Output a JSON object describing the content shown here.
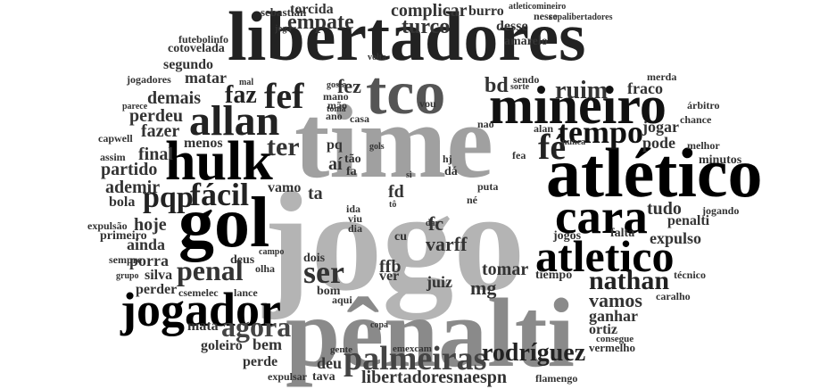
{
  "words": [
    {
      "text": "jogo",
      "color": "#b4b4b4"
    },
    {
      "text": "time",
      "color": "#a0a0a0"
    },
    {
      "text": "pênalti",
      "color": "#8a8a8a"
    },
    {
      "text": "libertadores",
      "color": "#222222"
    },
    {
      "text": "tco",
      "color": "#555555"
    },
    {
      "text": "gol",
      "color": "#000000"
    },
    {
      "text": "atlético",
      "color": "#000000"
    },
    {
      "text": "mineiro",
      "color": "#111111"
    },
    {
      "text": "hulk",
      "color": "#000000"
    },
    {
      "text": "cara",
      "color": "#000000"
    },
    {
      "text": "allan",
      "color": "#222222"
    },
    {
      "text": "jogador",
      "color": "#000000"
    },
    {
      "text": "atletico",
      "color": "#000000"
    },
    {
      "text": "palmeiras",
      "color": "#444444"
    },
    {
      "text": "fef",
      "color": "#222222"
    },
    {
      "text": "fé",
      "color": "#222222"
    },
    {
      "text": "tempo",
      "color": "#111111"
    },
    {
      "text": "fácil",
      "color": "#222222"
    },
    {
      "text": "penal",
      "color": "#333333"
    },
    {
      "text": "ser",
      "color": "#333333"
    },
    {
      "text": "agora",
      "color": "#444444"
    },
    {
      "text": "nathan",
      "color": "#222222"
    },
    {
      "text": "rodríguez",
      "color": "#222222"
    },
    {
      "text": "pqp",
      "color": "#222222"
    },
    {
      "text": "faz",
      "color": "#222222"
    },
    {
      "text": "ter",
      "color": "#333333"
    },
    {
      "text": "empate",
      "color": "#333333"
    },
    {
      "text": "ruim",
      "color": "#333333"
    },
    {
      "text": "bd",
      "color": "#333333"
    },
    {
      "text": "fez",
      "color": "#333333"
    },
    {
      "text": "turco",
      "color": "#333333"
    },
    {
      "text": "complicar",
      "color": "#333333"
    },
    {
      "text": "libertadoresnaespn",
      "color": "#333333"
    },
    {
      "text": "varff",
      "color": "#333333"
    },
    {
      "text": "demais",
      "color": "#333333"
    },
    {
      "text": "perdeu",
      "color": "#333333"
    },
    {
      "text": "fazer",
      "color": "#333333"
    },
    {
      "text": "menos",
      "color": "#333333"
    },
    {
      "text": "final",
      "color": "#333333"
    },
    {
      "text": "partido",
      "color": "#333333"
    },
    {
      "text": "ademir",
      "color": "#333333"
    },
    {
      "text": "hoje",
      "color": "#333333"
    },
    {
      "text": "ainda",
      "color": "#333333"
    },
    {
      "text": "porra",
      "color": "#333333"
    },
    {
      "text": "silva",
      "color": "#333333"
    },
    {
      "text": "perder",
      "color": "#333333"
    },
    {
      "text": "mata",
      "color": "#333333"
    },
    {
      "text": "goleiro",
      "color": "#333333"
    },
    {
      "text": "bem",
      "color": "#333333"
    },
    {
      "text": "perde",
      "color": "#333333"
    },
    {
      "text": "deu",
      "color": "#333333"
    },
    {
      "text": "tava",
      "color": "#333333"
    },
    {
      "text": "expulsar",
      "color": "#333333"
    },
    {
      "text": "vamos",
      "color": "#333333"
    },
    {
      "text": "ganhar",
      "color": "#333333"
    },
    {
      "text": "ortiz",
      "color": "#333333"
    },
    {
      "text": "tomar",
      "color": "#333333"
    },
    {
      "text": "juiz",
      "color": "#333333"
    },
    {
      "text": "mg",
      "color": "#333333"
    },
    {
      "text": "ffb",
      "color": "#333333"
    },
    {
      "text": "ver",
      "color": "#333333"
    },
    {
      "text": "fc",
      "color": "#333333"
    },
    {
      "text": "cu",
      "color": "#333333"
    },
    {
      "text": "fd",
      "color": "#333333"
    },
    {
      "text": "aí",
      "color": "#333333"
    },
    {
      "text": "ta",
      "color": "#333333"
    },
    {
      "text": "vamo",
      "color": "#333333"
    },
    {
      "text": "dois",
      "color": "#333333"
    },
    {
      "text": "bom",
      "color": "#333333"
    },
    {
      "text": "tudo",
      "color": "#333333"
    },
    {
      "text": "penalti",
      "color": "#333333"
    },
    {
      "text": "expulso",
      "color": "#333333"
    },
    {
      "text": "pode",
      "color": "#333333"
    },
    {
      "text": "jogar",
      "color": "#333333"
    },
    {
      "text": "fraco",
      "color": "#333333"
    },
    {
      "text": "desse",
      "color": "#333333"
    },
    {
      "text": "amarelo",
      "color": "#333333"
    },
    {
      "text": "burro",
      "color": "#333333"
    },
    {
      "text": "torcida",
      "color": "#333333"
    },
    {
      "text": "sebastián",
      "color": "#333333"
    },
    {
      "text": "segundo",
      "color": "#333333"
    },
    {
      "text": "matar",
      "color": "#333333"
    },
    {
      "text": "cotovelada",
      "color": "#333333"
    },
    {
      "text": "futebolinfo",
      "color": "#333333"
    },
    {
      "text": "jogadores",
      "color": "#333333"
    },
    {
      "text": "capwell",
      "color": "#333333"
    },
    {
      "text": "assim",
      "color": "#333333"
    },
    {
      "text": "bola",
      "color": "#333333"
    },
    {
      "text": "expulsão",
      "color": "#333333"
    },
    {
      "text": "primeiro",
      "color": "#333333"
    },
    {
      "text": "sempre",
      "color": "#333333"
    },
    {
      "text": "grupo",
      "color": "#333333"
    },
    {
      "text": "csemelec",
      "color": "#333333"
    },
    {
      "text": "deus",
      "color": "#333333"
    },
    {
      "text": "olha",
      "color": "#333333"
    },
    {
      "text": "campo",
      "color": "#333333"
    },
    {
      "text": "lance",
      "color": "#333333"
    },
    {
      "text": "aqui",
      "color": "#333333"
    },
    {
      "text": "gente",
      "color": "#333333"
    },
    {
      "text": "emexcam",
      "color": "#333333"
    },
    {
      "text": "copa",
      "color": "#333333"
    },
    {
      "text": "flamengo",
      "color": "#333333"
    },
    {
      "text": "vermelho",
      "color": "#333333"
    },
    {
      "text": "consegue",
      "color": "#333333"
    },
    {
      "text": "tiempo",
      "color": "#333333"
    },
    {
      "text": "jogos",
      "color": "#333333"
    },
    {
      "text": "falta",
      "color": "#333333"
    },
    {
      "text": "jogando",
      "color": "#333333"
    },
    {
      "text": "técnico",
      "color": "#333333"
    },
    {
      "text": "caralho",
      "color": "#333333"
    },
    {
      "text": "minutos",
      "color": "#333333"
    },
    {
      "text": "melhor",
      "color": "#333333"
    },
    {
      "text": "chance",
      "color": "#333333"
    },
    {
      "text": "árbitro",
      "color": "#333333"
    },
    {
      "text": "merda",
      "color": "#333333"
    },
    {
      "text": "copalibertadores",
      "color": "#333333"
    },
    {
      "text": "atleticomineiro",
      "color": "#333333"
    },
    {
      "text": "nesse",
      "color": "#333333"
    },
    {
      "text": "joga",
      "color": "#333333"
    },
    {
      "text": "volta",
      "color": "#333333"
    },
    {
      "text": "mal",
      "color": "#333333"
    },
    {
      "text": "gosta",
      "color": "#333333"
    },
    {
      "text": "toma",
      "color": "#333333"
    },
    {
      "text": "mano",
      "color": "#333333"
    },
    {
      "text": "mão",
      "color": "#333333"
    },
    {
      "text": "ano",
      "color": "#333333"
    },
    {
      "text": "casa",
      "color": "#333333"
    },
    {
      "text": "vou",
      "color": "#333333"
    },
    {
      "text": "sendo",
      "color": "#333333"
    },
    {
      "text": "sorte",
      "color": "#333333"
    },
    {
      "text": "nao",
      "color": "#333333"
    },
    {
      "text": "alan",
      "color": "#333333"
    },
    {
      "text": "nunca",
      "color": "#333333"
    },
    {
      "text": "fea",
      "color": "#333333"
    },
    {
      "text": "puta",
      "color": "#333333"
    },
    {
      "text": "né",
      "color": "#333333"
    },
    {
      "text": "dar",
      "color": "#333333"
    },
    {
      "text": "dá",
      "color": "#333333"
    },
    {
      "text": "hj",
      "color": "#333333"
    },
    {
      "text": "si",
      "color": "#333333"
    },
    {
      "text": "gols",
      "color": "#333333"
    },
    {
      "text": "tão",
      "color": "#333333"
    },
    {
      "text": "fa",
      "color": "#333333"
    },
    {
      "text": "pq",
      "color": "#333333"
    },
    {
      "text": "ida",
      "color": "#333333"
    },
    {
      "text": "viu",
      "color": "#333333"
    },
    {
      "text": "dia",
      "color": "#333333"
    },
    {
      "text": "tô",
      "color": "#333333"
    },
    {
      "text": "parece",
      "color": "#333333"
    }
  ]
}
